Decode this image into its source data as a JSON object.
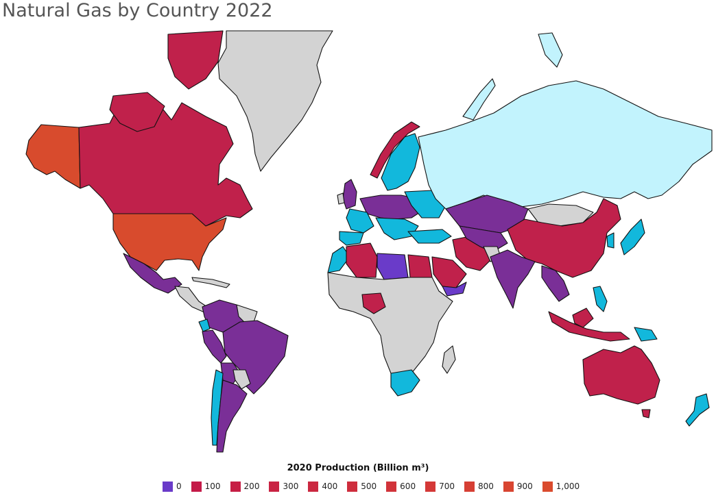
{
  "title": "Natural Gas by Country 2022",
  "legend": {
    "title": "2020 Production (Billion m³)",
    "items": [
      {
        "label": "0",
        "color": "#6a3bc9"
      },
      {
        "label": "100",
        "color": "#c41a48"
      },
      {
        "label": "200",
        "color": "#c61e45"
      },
      {
        "label": "300",
        "color": "#c92343"
      },
      {
        "label": "400",
        "color": "#cb2840"
      },
      {
        "label": "500",
        "color": "#ce2d3d"
      },
      {
        "label": "600",
        "color": "#d1333a"
      },
      {
        "label": "700",
        "color": "#d43837"
      },
      {
        "label": "800",
        "color": "#d63f34"
      },
      {
        "label": "900",
        "color": "#d84531"
      },
      {
        "label": "1,000",
        "color": "#da4b2e"
      }
    ]
  },
  "palette": {
    "no_data": "#d3d3d3",
    "cyan": "#12b8dc",
    "light_cyan": "#c2f3fd",
    "purple": "#7a2f97",
    "crimson": "#c0214b",
    "orange": "#d84b2d",
    "violet": "#6a3bc9"
  }
}
